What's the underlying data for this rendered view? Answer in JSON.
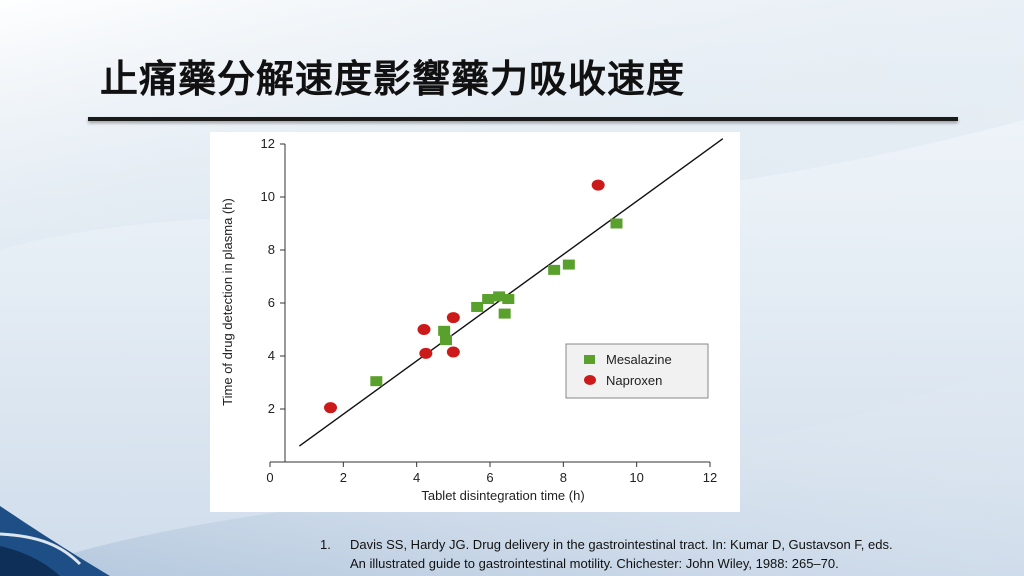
{
  "slide": {
    "title": "止痛藥分解速度影響藥力吸收速度",
    "colors": {
      "mesalazine": "#5aa02c",
      "naproxen": "#cc1a1a",
      "line": "#111111"
    }
  },
  "chart_data": {
    "type": "scatter",
    "xlabel": "Tablet disintegration time (h)",
    "ylabel": "Time of drug detection in plasma (h)",
    "xlim": [
      0,
      12
    ],
    "ylim": [
      0,
      12
    ],
    "xticks": [
      "0",
      "2",
      "4",
      "6",
      "8",
      "10",
      "12"
    ],
    "yticks": [
      "2",
      "4",
      "6",
      "8",
      "10",
      "12"
    ],
    "grid": false,
    "legend_position": "bottom-right",
    "series": [
      {
        "name": "Mesalazine",
        "marker": "square",
        "color": "#5aa02c",
        "points": [
          {
            "x": 2.9,
            "y": 3.05
          },
          {
            "x": 4.75,
            "y": 4.95
          },
          {
            "x": 4.8,
            "y": 4.6
          },
          {
            "x": 5.65,
            "y": 5.85
          },
          {
            "x": 5.95,
            "y": 6.15
          },
          {
            "x": 6.25,
            "y": 6.25
          },
          {
            "x": 6.5,
            "y": 6.15
          },
          {
            "x": 6.4,
            "y": 5.6
          },
          {
            "x": 7.75,
            "y": 7.25
          },
          {
            "x": 8.15,
            "y": 7.45
          },
          {
            "x": 9.45,
            "y": 9.0
          }
        ]
      },
      {
        "name": "Naproxen",
        "marker": "circle",
        "color": "#cc1a1a",
        "points": [
          {
            "x": 1.65,
            "y": 2.05
          },
          {
            "x": 4.2,
            "y": 5.0
          },
          {
            "x": 4.25,
            "y": 4.1
          },
          {
            "x": 5.0,
            "y": 5.45
          },
          {
            "x": 5.0,
            "y": 4.15
          },
          {
            "x": 8.95,
            "y": 10.45
          }
        ]
      }
    ],
    "trendline": {
      "x": [
        0.8,
        12.35
      ],
      "y": [
        0.6,
        12.2
      ]
    }
  },
  "reference": {
    "number": "1.",
    "line1": "Davis SS, Hardy JG. Drug delivery in the gastrointestinal tract. In: Kumar D, Gustavson F, eds.",
    "line2": "An illustrated guide to gastrointestinal motility. Chichester: John Wiley, 1988: 265–70."
  }
}
